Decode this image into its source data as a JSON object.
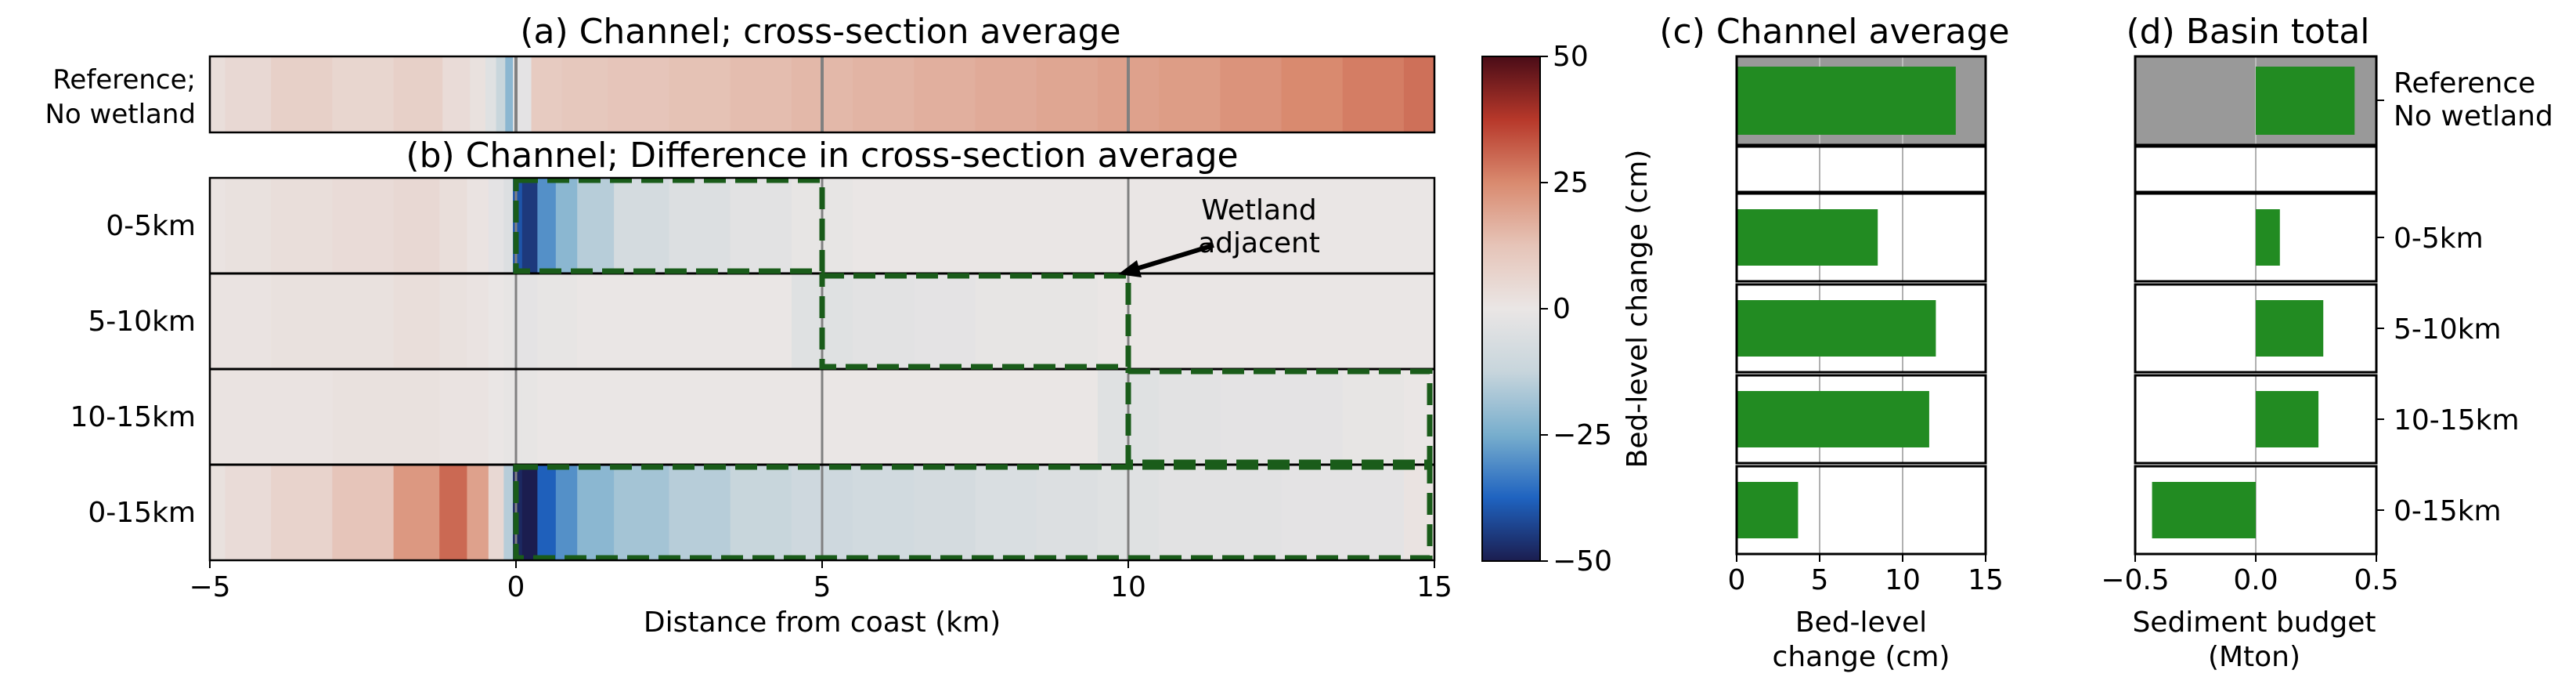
{
  "colors": {
    "bar": "#228b22",
    "reference_bg": "#999999",
    "dashed_box": "#1a5c1a",
    "divider": "#000000",
    "vgrid": "#808080",
    "colormap": [
      "#1b1d4f",
      "#1f63c0",
      "#78aecd",
      "#c7d5dc",
      "#eae6e5",
      "#e6c4b8",
      "#d98a6f",
      "#b7382a",
      "#4a0c17"
    ]
  },
  "panel_a": {
    "title": "(a) Channel; cross-section average",
    "row_label_line1": "Reference;",
    "row_label_line2": "No wetland"
  },
  "panel_b": {
    "title": "(b) Channel; Difference in cross-section average",
    "row_labels": [
      "0-5km",
      "5-10km",
      "10-15km",
      "0-15km"
    ],
    "annotation_line1": "Wetland",
    "annotation_line2": "adjacent",
    "xlabel": "Distance from coast (km)",
    "xticks": [
      "−5",
      "0",
      "5",
      "10",
      "15"
    ]
  },
  "colorbar": {
    "label": "Bed-level change (cm)",
    "ticks": [
      "50",
      "25",
      "0",
      "−25",
      "−50"
    ]
  },
  "panel_c": {
    "title": "(c) Channel average",
    "xlabel_line1": "Bed-level",
    "xlabel_line2": "change (cm)",
    "xticks": [
      "0",
      "5",
      "10",
      "15"
    ]
  },
  "panel_d": {
    "title": "(d) Basin total",
    "xlabel_line1": "Sediment budget",
    "xlabel_line2": "(Mton)",
    "xticks": [
      "−0.5",
      "0.0",
      "0.5"
    ],
    "row_labels": [
      "Reference",
      "No wetland",
      "0-5km",
      "5-10km",
      "10-15km",
      "0-15km"
    ]
  },
  "chart_data": [
    {
      "type": "heatmap",
      "title": "(a) Channel; cross-section average",
      "xlabel": "",
      "ylabel": "",
      "xlim": [
        -5,
        15
      ],
      "rows": [
        "Reference; No wetland"
      ],
      "x": [
        -5,
        -4.5,
        -3.5,
        -2.5,
        -1.5,
        -0.9,
        -0.6,
        -0.4,
        -0.25,
        -0.1,
        0,
        0.5,
        1,
        2,
        3,
        4,
        5,
        6,
        7,
        8,
        9,
        10,
        11,
        12,
        13,
        14,
        15
      ],
      "values": [
        [
          3,
          5,
          8,
          6,
          8,
          4,
          2,
          -4,
          -12,
          -22,
          -2,
          10,
          11,
          12,
          13,
          14,
          15,
          16,
          17,
          18,
          19,
          20,
          21,
          23,
          25,
          27,
          29
        ]
      ]
    },
    {
      "type": "heatmap",
      "title": "(b) Channel; Difference in cross-section average",
      "xlabel": "Distance from coast (km)",
      "ylabel": "",
      "xlim": [
        -5,
        15
      ],
      "rows": [
        "0-5km",
        "5-10km",
        "10-15km",
        "0-15km"
      ],
      "x": [
        -5,
        -4.5,
        -3.5,
        -2.5,
        -1.5,
        -1.0,
        -0.6,
        -0.3,
        -0.1,
        0,
        0.2,
        0.5,
        0.8,
        1.2,
        2,
        3,
        4,
        5,
        6,
        7,
        8,
        9,
        10,
        11,
        12,
        13,
        14,
        15
      ],
      "values": [
        [
          1,
          2,
          3,
          4,
          5,
          3,
          1,
          -2,
          -5,
          -40,
          -45,
          -30,
          -22,
          -15,
          -8,
          -5,
          -3,
          -1,
          0,
          0,
          0,
          0,
          0,
          0,
          0,
          0,
          0,
          0
        ],
        [
          1,
          1,
          2,
          2,
          3,
          2,
          1,
          0,
          -1,
          -2,
          -2,
          -1,
          -1,
          0,
          0,
          0,
          0,
          -4,
          -3,
          -2,
          -1,
          -1,
          0,
          0,
          0,
          0,
          0,
          0
        ],
        [
          1,
          1,
          1,
          2,
          2,
          1,
          1,
          0,
          -1,
          -1,
          -1,
          0,
          0,
          0,
          0,
          0,
          0,
          0,
          0,
          0,
          0,
          0,
          -4,
          -3,
          -2,
          -2,
          -1,
          0
        ],
        [
          2,
          4,
          7,
          12,
          22,
          30,
          20,
          5,
          -15,
          -48,
          -50,
          -38,
          -30,
          -22,
          -18,
          -15,
          -12,
          -10,
          -9,
          -8,
          -6,
          -5,
          -4,
          -3,
          -3,
          -2,
          -2,
          1
        ]
      ],
      "wetland_adjacent_extents_km": [
        [
          0,
          5
        ],
        [
          5,
          10
        ],
        [
          10,
          15
        ],
        [
          0,
          15
        ]
      ],
      "colorbar": {
        "label": "Bed-level change (cm)",
        "range": [
          -50,
          50
        ],
        "ticks": [
          50,
          25,
          0,
          -25,
          -50
        ]
      }
    },
    {
      "type": "bar",
      "orientation": "horizontal",
      "title": "(c) Channel average",
      "xlabel": "Bed-level change (cm)",
      "xlim": [
        0,
        15
      ],
      "categories": [
        "Reference; No wetland",
        "0-5km",
        "5-10km",
        "10-15km",
        "0-15km"
      ],
      "values": [
        13.2,
        8.5,
        12.0,
        11.6,
        3.7
      ],
      "grid_x": [
        5,
        10
      ]
    },
    {
      "type": "bar",
      "orientation": "horizontal",
      "title": "(d) Basin total",
      "xlabel": "Sediment budget (Mton)",
      "xlim": [
        -0.5,
        0.5
      ],
      "categories": [
        "Reference; No wetland",
        "0-5km",
        "5-10km",
        "10-15km",
        "0-15km"
      ],
      "values": [
        0.41,
        0.1,
        0.28,
        0.26,
        -0.43
      ],
      "grid_x": [
        0
      ]
    }
  ]
}
